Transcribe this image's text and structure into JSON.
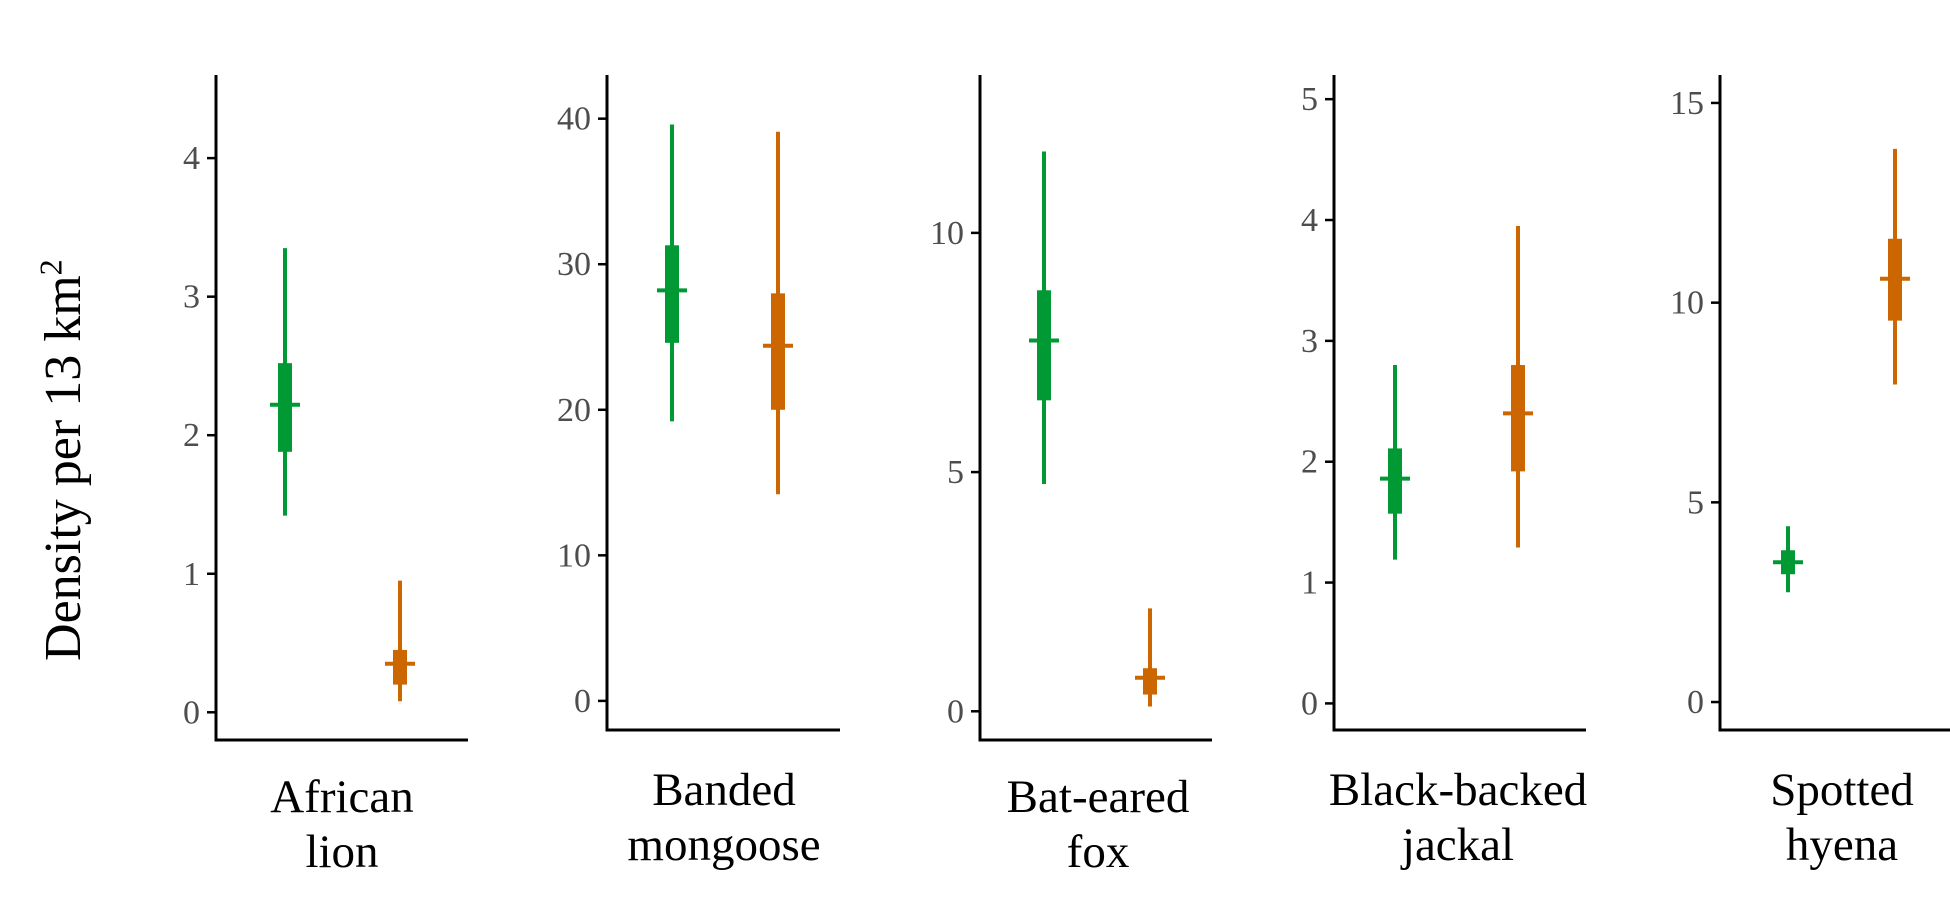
{
  "y_axis_title": {
    "text": "Density per 13 km",
    "superscript": "2"
  },
  "colors": {
    "group_a": "#009933",
    "group_b": "#cc6600",
    "axis": "#000000",
    "tick_text": "#4d4d4d"
  },
  "chart_data": [
    {
      "type": "interval",
      "name_lines": [
        "African",
        "lion"
      ],
      "ylim": [
        -0.2,
        4.6
      ],
      "yticks": [
        0,
        1,
        2,
        3,
        4
      ],
      "series": [
        {
          "median": 2.22,
          "inner": [
            1.88,
            2.52
          ],
          "outer": [
            1.42,
            3.35
          ],
          "color": "#009933"
        },
        {
          "median": 0.35,
          "inner": [
            0.2,
            0.45
          ],
          "outer": [
            0.08,
            0.95
          ],
          "color": "#cc6600"
        }
      ]
    },
    {
      "type": "interval",
      "name_lines": [
        "Banded",
        "mongoose"
      ],
      "ylim": [
        -2,
        43
      ],
      "yticks": [
        0,
        10,
        20,
        30,
        40
      ],
      "series": [
        {
          "median": 28.2,
          "inner": [
            24.6,
            31.3
          ],
          "outer": [
            19.2,
            39.6
          ],
          "color": "#009933"
        },
        {
          "median": 24.4,
          "inner": [
            20.0,
            28.0
          ],
          "outer": [
            14.2,
            39.1
          ],
          "color": "#cc6600"
        }
      ]
    },
    {
      "type": "interval",
      "name_lines": [
        "Bat-eared",
        "fox"
      ],
      "ylim": [
        -0.6,
        13.3
      ],
      "yticks": [
        0,
        5,
        10
      ],
      "series": [
        {
          "median": 7.75,
          "inner": [
            6.5,
            8.8
          ],
          "outer": [
            4.75,
            11.7
          ],
          "color": "#009933"
        },
        {
          "median": 0.7,
          "inner": [
            0.35,
            0.9
          ],
          "outer": [
            0.1,
            2.15
          ],
          "color": "#cc6600"
        }
      ]
    },
    {
      "type": "interval",
      "name_lines": [
        "Black-backed",
        "jackal"
      ],
      "ylim": [
        -0.22,
        5.2
      ],
      "yticks": [
        0,
        1,
        2,
        3,
        4,
        5
      ],
      "series": [
        {
          "median": 1.86,
          "inner": [
            1.57,
            2.11
          ],
          "outer": [
            1.19,
            2.8
          ],
          "color": "#009933"
        },
        {
          "median": 2.4,
          "inner": [
            1.92,
            2.8
          ],
          "outer": [
            1.29,
            3.95
          ],
          "color": "#cc6600"
        }
      ]
    },
    {
      "type": "interval",
      "name_lines": [
        "Spotted",
        "hyena"
      ],
      "ylim": [
        -0.7,
        15.7
      ],
      "yticks": [
        0,
        5,
        10,
        15
      ],
      "series": [
        {
          "median": 3.5,
          "inner": [
            3.2,
            3.8
          ],
          "outer": [
            2.75,
            4.4
          ],
          "color": "#009933"
        },
        {
          "median": 10.6,
          "inner": [
            9.55,
            11.6
          ],
          "outer": [
            7.95,
            13.85
          ],
          "color": "#cc6600"
        }
      ]
    }
  ]
}
